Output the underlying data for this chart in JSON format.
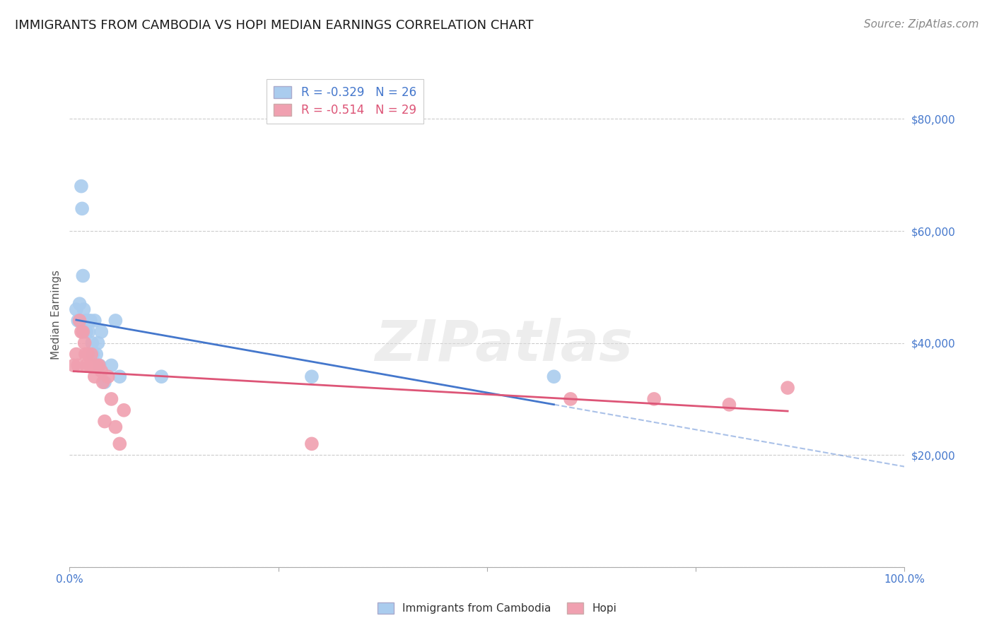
{
  "title": "IMMIGRANTS FROM CAMBODIA VS HOPI MEDIAN EARNINGS CORRELATION CHART",
  "source": "Source: ZipAtlas.com",
  "ylabel": "Median Earnings",
  "xlim": [
    0.0,
    1.0
  ],
  "ylim": [
    0,
    90000
  ],
  "yticks": [
    0,
    20000,
    40000,
    60000,
    80000
  ],
  "xtick_positions": [
    0.0,
    0.25,
    0.5,
    0.75,
    1.0
  ],
  "xtick_labels": [
    "0.0%",
    "",
    "",
    "",
    "100.0%"
  ],
  "r_cambodia": -0.329,
  "n_cambodia": 26,
  "r_hopi": -0.514,
  "n_hopi": 29,
  "cambodia_color": "#aaccee",
  "hopi_color": "#f0a0b0",
  "cambodia_line_color": "#4477cc",
  "hopi_line_color": "#dd5577",
  "background_color": "#ffffff",
  "grid_color": "#cccccc",
  "tick_color": "#4477cc",
  "cambodia_x": [
    0.008,
    0.01,
    0.012,
    0.014,
    0.015,
    0.016,
    0.017,
    0.019,
    0.02,
    0.022,
    0.023,
    0.025,
    0.027,
    0.028,
    0.03,
    0.032,
    0.034,
    0.036,
    0.038,
    0.042,
    0.05,
    0.055,
    0.06,
    0.11,
    0.29,
    0.58
  ],
  "cambodia_y": [
    46000,
    44000,
    47000,
    68000,
    64000,
    52000,
    46000,
    44000,
    42000,
    44000,
    42000,
    44000,
    40000,
    38000,
    44000,
    38000,
    40000,
    36000,
    42000,
    33000,
    36000,
    44000,
    34000,
    34000,
    34000,
    34000
  ],
  "hopi_x": [
    0.005,
    0.008,
    0.01,
    0.012,
    0.014,
    0.016,
    0.018,
    0.019,
    0.02,
    0.022,
    0.024,
    0.026,
    0.028,
    0.03,
    0.032,
    0.035,
    0.038,
    0.04,
    0.042,
    0.046,
    0.05,
    0.055,
    0.06,
    0.065,
    0.29,
    0.6,
    0.7,
    0.79,
    0.86
  ],
  "hopi_y": [
    36000,
    38000,
    36000,
    44000,
    42000,
    42000,
    40000,
    38000,
    36000,
    38000,
    36000,
    38000,
    36000,
    34000,
    36000,
    36000,
    35000,
    33000,
    26000,
    34000,
    30000,
    25000,
    22000,
    28000,
    22000,
    30000,
    30000,
    29000,
    32000
  ],
  "title_fontsize": 13,
  "axis_label_fontsize": 11,
  "tick_fontsize": 11,
  "legend_fontsize": 12,
  "source_fontsize": 11
}
